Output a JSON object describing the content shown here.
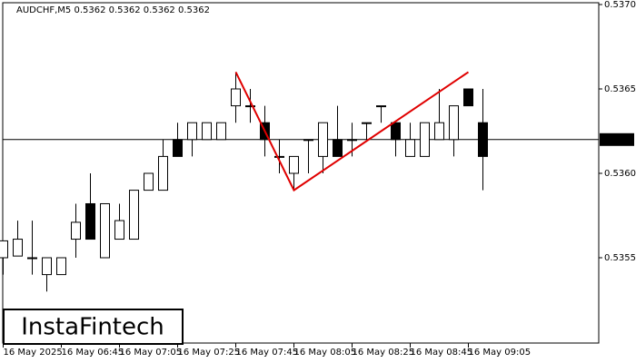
{
  "chart_data": {
    "type": "candlestick",
    "title": "AUDCHF,M5  0.5362 0.5362 0.5362 0.5362",
    "logo": "InstaFintech",
    "categories": [
      "16 May 2025",
      null,
      null,
      null,
      "16 May 06:45",
      null,
      null,
      null,
      "16 May 07:05",
      null,
      null,
      null,
      "16 May 07:25",
      null,
      null,
      null,
      "16 May 07:45",
      null,
      null,
      null,
      "16 May 08:05",
      null,
      null,
      null,
      "16 May 08:25",
      null,
      null,
      null,
      "16 May 08:45",
      null,
      null,
      null,
      "16 May 09:05",
      null
    ],
    "open": [
      0.5355,
      0.53551,
      0.5355,
      0.5354,
      0.5354,
      0.53561,
      0.53582,
      0.5355,
      0.53561,
      0.53561,
      0.5359,
      0.5359,
      0.5362,
      0.5362,
      0.5362,
      0.5362,
      0.5364,
      0.5364,
      0.5363,
      0.5361,
      0.536,
      0.5362,
      0.5361,
      0.5362,
      0.5362,
      0.5363,
      0.5364,
      0.5363,
      0.5361,
      0.5361,
      0.5362,
      0.5362,
      0.5365,
      0.5363
    ],
    "high": [
      0.5356,
      0.53572,
      0.53572,
      0.5355,
      0.5355,
      0.53582,
      0.536,
      0.53582,
      0.53582,
      0.5359,
      0.536,
      0.5362,
      0.5363,
      0.5363,
      0.5363,
      0.5363,
      0.5366,
      0.5365,
      0.5364,
      0.5362,
      0.5361,
      0.5362,
      0.5363,
      0.5364,
      0.5363,
      0.5363,
      0.5364,
      0.5363,
      0.5363,
      0.5363,
      0.5365,
      0.5364,
      0.5365,
      0.5365
    ],
    "low": [
      0.5354,
      0.53551,
      0.5354,
      0.5353,
      0.5354,
      0.5355,
      0.53561,
      0.5355,
      0.53561,
      0.53561,
      0.5359,
      0.5359,
      0.5361,
      0.5361,
      0.5362,
      0.5362,
      0.5363,
      0.5363,
      0.5361,
      0.536,
      0.5359,
      0.536,
      0.536,
      0.5361,
      0.5361,
      0.5362,
      0.5363,
      0.5361,
      0.5361,
      0.5361,
      0.5362,
      0.5361,
      0.5364,
      0.5359
    ],
    "close": [
      0.5356,
      0.53561,
      0.5355,
      0.5355,
      0.5355,
      0.53571,
      0.53561,
      0.53582,
      0.53572,
      0.5359,
      0.536,
      0.5361,
      0.5361,
      0.5363,
      0.5363,
      0.5363,
      0.5365,
      0.5364,
      0.5362,
      0.5361,
      0.5361,
      0.5362,
      0.5363,
      0.5361,
      0.5362,
      0.5363,
      0.5364,
      0.5362,
      0.5362,
      0.5363,
      0.5363,
      0.5364,
      0.5364,
      0.5361
    ],
    "up_color": "#ffffff",
    "down_color": "#000000",
    "ylim": [
      0.535,
      0.537
    ],
    "yticks": [
      0.5355,
      {
        "value": 0.536,
        "label": "0.5360"
      },
      0.5365,
      {
        "value": 0.537,
        "label": "0.5370"
      }
    ],
    "current_price": 0.5362,
    "pattern": {
      "color": "#e00000",
      "points": [
        {
          "index": 16,
          "value": 0.5366
        },
        {
          "index": 20,
          "value": 0.5359
        },
        {
          "index": 32,
          "value": 0.5366
        }
      ]
    }
  }
}
